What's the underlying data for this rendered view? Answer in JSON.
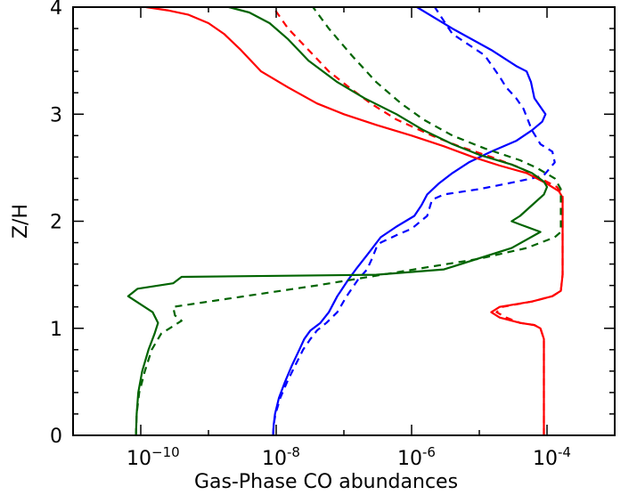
{
  "chart_data": {
    "type": "line",
    "title": "",
    "xlabel": "Gas-Phase CO abundances",
    "ylabel": "Z/H",
    "xscale": "log",
    "xlim": [
      1e-11,
      0.001
    ],
    "ylim": [
      0,
      4
    ],
    "x_ticks": [
      {
        "value": 1e-10,
        "base": "10",
        "exp": "−10"
      },
      {
        "value": 1e-08,
        "base": "10",
        "exp": "-8"
      },
      {
        "value": 1e-06,
        "base": "10",
        "exp": "-6"
      },
      {
        "value": 0.0001,
        "base": "10",
        "exp": "-4"
      }
    ],
    "y_ticks": [
      "0",
      "1",
      "2",
      "3",
      "4"
    ],
    "grid": false,
    "series": [
      {
        "color": "#0000ff",
        "style": "solid",
        "points": [
          [
            9e-09,
            0.0
          ],
          [
            9.2e-09,
            0.1
          ],
          [
            9.6e-09,
            0.2
          ],
          [
            1.1e-08,
            0.35
          ],
          [
            1.35e-08,
            0.5
          ],
          [
            1.7e-08,
            0.65
          ],
          [
            2.2e-08,
            0.8
          ],
          [
            2.6e-08,
            0.9
          ],
          [
            3.2e-08,
            0.98
          ],
          [
            4.5e-08,
            1.05
          ],
          [
            6e-08,
            1.15
          ],
          [
            8e-08,
            1.3
          ],
          [
            1.15e-07,
            1.45
          ],
          [
            1.5e-07,
            1.55
          ],
          [
            2.3e-07,
            1.7
          ],
          [
            3.5e-07,
            1.85
          ],
          [
            6e-07,
            1.95
          ],
          [
            1.1e-06,
            2.05
          ],
          [
            1.4e-06,
            2.15
          ],
          [
            1.7e-06,
            2.25
          ],
          [
            2.5e-06,
            2.35
          ],
          [
            4e-06,
            2.45
          ],
          [
            7e-06,
            2.55
          ],
          [
            1.5e-05,
            2.65
          ],
          [
            3.5e-05,
            2.75
          ],
          [
            6e-05,
            2.85
          ],
          [
            8.5e-05,
            2.93
          ],
          [
            9.5e-05,
            3.0
          ],
          [
            6.5e-05,
            3.15
          ],
          [
            5.8e-05,
            3.3
          ],
          [
            5e-05,
            3.4
          ],
          [
            3.5e-05,
            3.45
          ],
          [
            1.5e-05,
            3.6
          ],
          [
            4e-06,
            3.8
          ],
          [
            1.2e-06,
            4.0
          ]
        ]
      },
      {
        "color": "#0000ff",
        "style": "dashed",
        "points": [
          [
            9e-09,
            0.0
          ],
          [
            9.2e-09,
            0.1
          ],
          [
            9.8e-09,
            0.2
          ],
          [
            1.15e-08,
            0.35
          ],
          [
            1.45e-08,
            0.5
          ],
          [
            1.9e-08,
            0.65
          ],
          [
            2.5e-08,
            0.8
          ],
          [
            3.2e-08,
            0.9
          ],
          [
            4e-08,
            0.98
          ],
          [
            5.5e-08,
            1.05
          ],
          [
            8e-08,
            1.15
          ],
          [
            1.1e-07,
            1.3
          ],
          [
            1.6e-07,
            1.45
          ],
          [
            2.2e-07,
            1.55
          ],
          [
            2.6e-07,
            1.65
          ],
          [
            3e-07,
            1.75
          ],
          [
            3.5e-07,
            1.8
          ],
          [
            6e-07,
            1.87
          ],
          [
            1e-06,
            1.93
          ],
          [
            1.7e-06,
            2.05
          ],
          [
            2e-06,
            2.2
          ],
          [
            3e-06,
            2.25
          ],
          [
            1e-05,
            2.3
          ],
          [
            2.5e-05,
            2.35
          ],
          [
            6e-05,
            2.4
          ],
          [
            9e-05,
            2.43
          ],
          [
            0.00013,
            2.55
          ],
          [
            0.00012,
            2.65
          ],
          [
            8e-05,
            2.72
          ],
          [
            6e-05,
            2.85
          ],
          [
            4.5e-05,
            3.05
          ],
          [
            3.5e-05,
            3.15
          ],
          [
            2.5e-05,
            3.25
          ],
          [
            2e-05,
            3.35
          ],
          [
            1.2e-05,
            3.55
          ],
          [
            4e-06,
            3.75
          ],
          [
            2.2e-06,
            4.0
          ]
        ]
      },
      {
        "color": "#ff0000",
        "style": "solid",
        "points": [
          [
            9e-05,
            0.0
          ],
          [
            9e-05,
            0.5
          ],
          [
            9e-05,
            0.9
          ],
          [
            8e-05,
            1.0
          ],
          [
            6.5e-05,
            1.03
          ],
          [
            4e-05,
            1.05
          ],
          [
            2e-05,
            1.1
          ],
          [
            1.5e-05,
            1.15
          ],
          [
            2e-05,
            1.2
          ],
          [
            6e-05,
            1.25
          ],
          [
            0.00012,
            1.3
          ],
          [
            0.00016,
            1.35
          ],
          [
            0.00017,
            1.5
          ],
          [
            0.00017,
            2.0
          ],
          [
            0.00017,
            2.22
          ],
          [
            0.00015,
            2.28
          ],
          [
            0.0001,
            2.35
          ],
          [
            5e-05,
            2.45
          ],
          [
            2e-05,
            2.52
          ],
          [
            8e-06,
            2.6
          ],
          [
            3e-06,
            2.7
          ],
          [
            1e-06,
            2.8
          ],
          [
            3e-07,
            2.9
          ],
          [
            1e-07,
            3.0
          ],
          [
            4e-08,
            3.1
          ],
          [
            1.5e-08,
            3.25
          ],
          [
            6e-09,
            3.4
          ],
          [
            3e-09,
            3.6
          ],
          [
            1.7e-09,
            3.75
          ],
          [
            1e-09,
            3.85
          ],
          [
            5e-10,
            3.93
          ],
          [
            2.5e-10,
            3.97
          ],
          [
            1.2e-10,
            4.0
          ]
        ]
      },
      {
        "color": "#ff0000",
        "style": "dashed",
        "points": [
          [
            9e-05,
            0.0
          ],
          [
            9e-05,
            0.5
          ],
          [
            9e-05,
            0.9
          ],
          [
            8e-05,
            1.0
          ],
          [
            6.5e-05,
            1.03
          ],
          [
            4e-05,
            1.05
          ],
          [
            2.5e-05,
            1.1
          ],
          [
            1.8e-05,
            1.15
          ],
          [
            2.2e-05,
            1.2
          ],
          [
            6e-05,
            1.25
          ],
          [
            0.00012,
            1.3
          ],
          [
            0.00016,
            1.35
          ],
          [
            0.00017,
            1.5
          ],
          [
            0.00017,
            2.0
          ],
          [
            0.00017,
            2.25
          ],
          [
            0.00014,
            2.32
          ],
          [
            8e-05,
            2.4
          ],
          [
            4e-05,
            2.5
          ],
          [
            1.5e-05,
            2.6
          ],
          [
            5e-06,
            2.7
          ],
          [
            2e-06,
            2.8
          ],
          [
            6e-07,
            2.95
          ],
          [
            2.5e-07,
            3.1
          ],
          [
            1.2e-07,
            3.25
          ],
          [
            6e-08,
            3.4
          ],
          [
            3e-08,
            3.6
          ],
          [
            1.5e-08,
            3.8
          ],
          [
            9e-09,
            4.0
          ]
        ]
      },
      {
        "color": "#006400",
        "style": "solid",
        "points": [
          [
            8.5e-11,
            0.0
          ],
          [
            8.7e-11,
            0.2
          ],
          [
            9.2e-11,
            0.4
          ],
          [
            1.05e-10,
            0.6
          ],
          [
            1.3e-10,
            0.8
          ],
          [
            1.6e-10,
            0.95
          ],
          [
            1.8e-10,
            1.05
          ],
          [
            1.5e-10,
            1.15
          ],
          [
            6.5e-11,
            1.3
          ],
          [
            9e-11,
            1.37
          ],
          [
            3e-10,
            1.42
          ],
          [
            4e-10,
            1.48
          ],
          [
            3e-07,
            1.5
          ],
          [
            3e-06,
            1.55
          ],
          [
            3e-05,
            1.75
          ],
          [
            8e-05,
            1.9
          ],
          [
            4e-05,
            1.97
          ],
          [
            3e-05,
            2.0
          ],
          [
            4e-05,
            2.05
          ],
          [
            6e-05,
            2.15
          ],
          [
            9e-05,
            2.25
          ],
          [
            0.0001,
            2.32
          ],
          [
            9e-05,
            2.37
          ],
          [
            6e-05,
            2.45
          ],
          [
            3e-05,
            2.53
          ],
          [
            1e-05,
            2.62
          ],
          [
            4e-06,
            2.72
          ],
          [
            1.5e-06,
            2.85
          ],
          [
            6e-07,
            3.0
          ],
          [
            2e-07,
            3.15
          ],
          [
            8e-08,
            3.3
          ],
          [
            3e-08,
            3.5
          ],
          [
            1.5e-08,
            3.7
          ],
          [
            8e-09,
            3.85
          ],
          [
            4e-09,
            3.95
          ],
          [
            2e-09,
            4.0
          ]
        ]
      },
      {
        "color": "#006400",
        "style": "dashed",
        "points": [
          [
            8.5e-11,
            0.0
          ],
          [
            8.7e-11,
            0.2
          ],
          [
            9.5e-11,
            0.4
          ],
          [
            1.15e-10,
            0.6
          ],
          [
            1.45e-10,
            0.8
          ],
          [
            2e-10,
            0.95
          ],
          [
            4e-10,
            1.07
          ],
          [
            3.2e-10,
            1.12
          ],
          [
            3e-10,
            1.2
          ],
          [
            4e-08,
            1.4
          ],
          [
            1e-05,
            1.65
          ],
          [
            5e-05,
            1.75
          ],
          [
            0.00013,
            1.85
          ],
          [
            0.00016,
            1.9
          ],
          [
            0.00016,
            2.0
          ],
          [
            0.00016,
            2.3
          ],
          [
            0.00013,
            2.4
          ],
          [
            7e-05,
            2.5
          ],
          [
            4e-05,
            2.57
          ],
          [
            1.2e-05,
            2.68
          ],
          [
            4e-06,
            2.8
          ],
          [
            1.5e-06,
            2.95
          ],
          [
            7e-07,
            3.1
          ],
          [
            3e-07,
            3.3
          ],
          [
            1.3e-07,
            3.55
          ],
          [
            6e-08,
            3.8
          ],
          [
            3.5e-08,
            4.0
          ]
        ]
      }
    ]
  }
}
